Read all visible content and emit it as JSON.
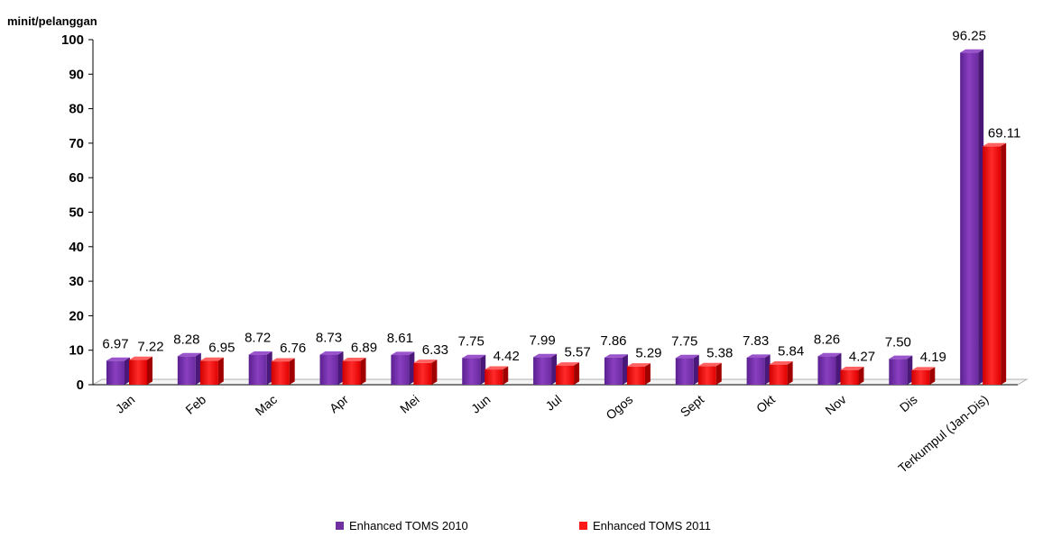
{
  "chart_data": {
    "type": "bar",
    "ylabel": "minit/pelanggan",
    "ylim": [
      0,
      100
    ],
    "yticks": [
      0,
      10,
      20,
      30,
      40,
      50,
      60,
      70,
      80,
      90,
      100
    ],
    "categories": [
      "Jan",
      "Feb",
      "Mac",
      "Apr",
      "Mei",
      "Jun",
      "Jul",
      "Ogos",
      "Sept",
      "Okt",
      "Nov",
      "Dis",
      "Terkumpul (Jan-Dis)"
    ],
    "series": [
      {
        "name": "Enhanced TOMS 2010",
        "color": "#7030a0",
        "values": [
          6.97,
          8.28,
          8.72,
          8.73,
          8.61,
          7.75,
          7.99,
          7.86,
          7.75,
          7.83,
          8.26,
          7.5,
          96.25
        ],
        "labels": [
          "6.97",
          "8.28",
          "8.72",
          "8.73",
          "8.61",
          "7.75",
          "7.99",
          "7.86",
          "7.75",
          "7.83",
          "8.26",
          "7.50",
          "96.25"
        ]
      },
      {
        "name": "Enhanced TOMS 2011",
        "color": "#ff1a1a",
        "values": [
          7.22,
          6.95,
          6.76,
          6.89,
          6.33,
          4.42,
          5.57,
          5.29,
          5.38,
          5.84,
          4.27,
          4.19,
          69.11
        ],
        "labels": [
          "7.22",
          "6.95",
          "6.76",
          "6.89",
          "6.33",
          "4.42",
          "5.57",
          "5.29",
          "5.38",
          "5.84",
          "4.27",
          "4.19",
          "69.11"
        ]
      }
    ],
    "grid": false,
    "legend_position": "bottom"
  }
}
